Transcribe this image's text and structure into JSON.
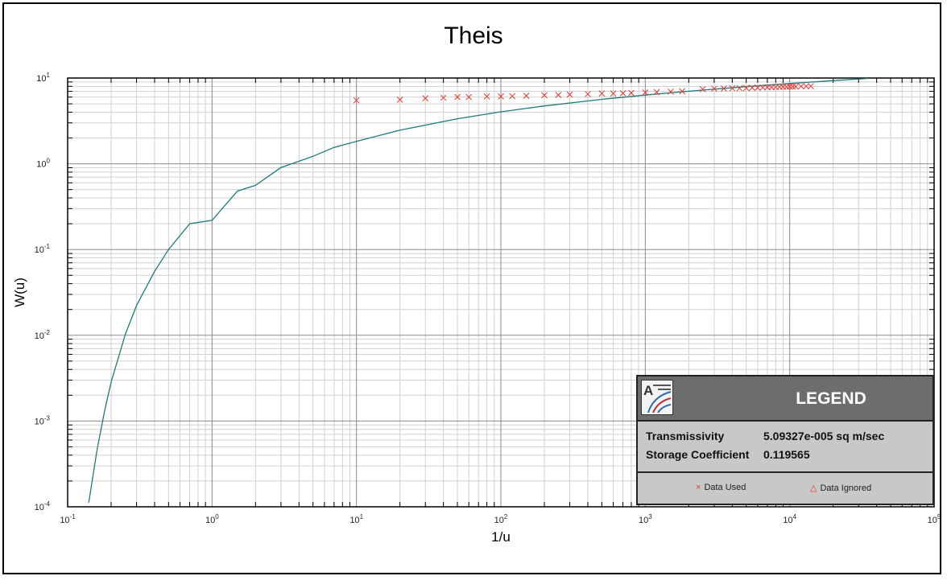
{
  "chart_data": {
    "type": "scatter",
    "title": "Theis",
    "xlabel": "1/u",
    "ylabel": "W(u)",
    "xscale": "log",
    "yscale": "log",
    "xlim": [
      0.1,
      100000
    ],
    "ylim": [
      0.0001,
      10
    ],
    "grid": true,
    "x_ticks": [
      {
        "base": "10",
        "exp": "-1"
      },
      {
        "base": "10",
        "exp": "0"
      },
      {
        "base": "10",
        "exp": "1"
      },
      {
        "base": "10",
        "exp": "2"
      },
      {
        "base": "10",
        "exp": "3"
      },
      {
        "base": "10",
        "exp": "4"
      },
      {
        "base": "10",
        "exp": "5"
      }
    ],
    "y_ticks": [
      {
        "base": "10",
        "exp": "-4"
      },
      {
        "base": "10",
        "exp": "-3"
      },
      {
        "base": "10",
        "exp": "-2"
      },
      {
        "base": "10",
        "exp": "-1"
      },
      {
        "base": "10",
        "exp": "0"
      },
      {
        "base": "10",
        "exp": "1"
      }
    ],
    "curve": {
      "color": "#1f7a7a",
      "x": [
        0.14,
        0.16,
        0.18,
        0.2,
        0.25,
        0.3,
        0.4,
        0.5,
        0.7,
        1,
        1.5,
        2,
        3,
        5,
        7,
        10,
        20,
        50,
        100,
        200,
        500,
        1000,
        2000,
        5000,
        10000,
        20000,
        35000
      ],
      "y": [
        0.000112,
        0.000466,
        0.0013,
        0.00284,
        0.01014,
        0.0223,
        0.0557,
        0.1,
        0.2,
        0.219,
        0.481,
        0.56,
        0.906,
        1.223,
        1.555,
        1.823,
        2.468,
        3.355,
        4.038,
        4.726,
        5.64,
        6.332,
        7.024,
        7.94,
        8.633,
        9.326,
        9.886
      ]
    },
    "data_used": {
      "color": "#e53935",
      "marker": "x",
      "x": [
        10,
        20,
        30,
        40,
        50,
        60,
        80,
        100,
        120,
        150,
        200,
        250,
        300,
        400,
        500,
        600,
        700,
        800,
        1000,
        1200,
        1500,
        1800,
        2500,
        3000,
        3500,
        4000,
        4500,
        5000,
        5500,
        6000,
        6500,
        7000,
        7500,
        8000,
        8500,
        9000,
        9500,
        10000,
        10500,
        11000,
        12000,
        13000,
        14000
      ],
      "y": [
        5.5,
        5.6,
        5.8,
        5.9,
        6.0,
        6.0,
        6.1,
        6.1,
        6.15,
        6.2,
        6.3,
        6.35,
        6.4,
        6.5,
        6.6,
        6.6,
        6.65,
        6.7,
        6.8,
        6.85,
        6.95,
        7.0,
        7.4,
        7.5,
        7.55,
        7.6,
        7.6,
        7.65,
        7.7,
        7.7,
        7.75,
        7.8,
        7.8,
        7.85,
        7.85,
        7.9,
        7.9,
        7.95,
        7.95,
        7.95,
        8.0,
        8.0,
        8.05
      ]
    },
    "legend": {
      "placement": "bottom-right",
      "title": "LEGEND",
      "params": [
        {
          "label": "Transmissivity",
          "value": "5.09327e-005  sq m/sec"
        },
        {
          "label": "Storage Coefficient",
          "value": "0.119565"
        }
      ],
      "keys": [
        {
          "symbol": "×",
          "label": "Data Used",
          "color": "#e53935"
        },
        {
          "symbol": "△",
          "label": "Data Ignored",
          "color": "#e53935"
        }
      ]
    }
  }
}
